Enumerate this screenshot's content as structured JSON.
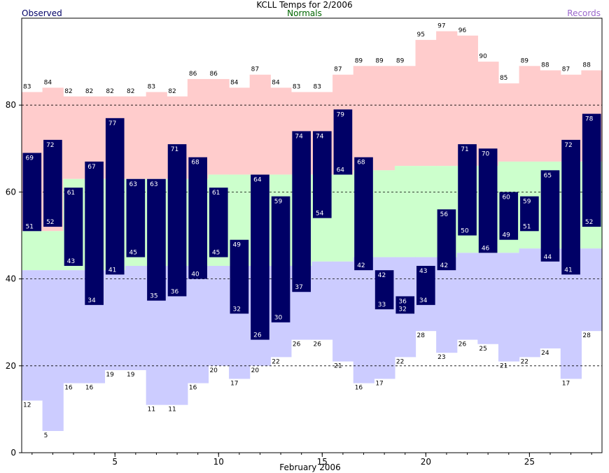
{
  "header": {
    "title": "KCLL Temps for 2/2006",
    "observed_label": "Observed",
    "normals_label": "Normals",
    "records_label": "Records"
  },
  "colors": {
    "observed_bar": "#000066",
    "record_high_band": "#ffcccc",
    "normal_band": "#ccffcc",
    "record_low_band": "#ccccff",
    "observed_text": "#000066",
    "normals_text": "#006600",
    "records_text": "#9966cc"
  },
  "chart_data": {
    "type": "bar",
    "title": "KCLL Temps for 2/2006",
    "xlabel": "February 2006",
    "ylabel": "",
    "days": [
      1,
      2,
      3,
      4,
      5,
      6,
      7,
      8,
      9,
      10,
      11,
      12,
      13,
      14,
      15,
      16,
      17,
      18,
      19,
      20,
      21,
      22,
      23,
      24,
      25,
      26,
      27,
      28
    ],
    "xlim": [
      0.5,
      28.5
    ],
    "xticks": [
      5,
      10,
      15,
      20,
      25
    ],
    "ylim": [
      0,
      100
    ],
    "yticks": [
      0,
      20,
      40,
      60,
      80
    ],
    "gridlines_y": [
      20,
      40,
      60,
      80
    ],
    "observed_high": [
      69,
      72,
      61,
      67,
      77,
      63,
      63,
      71,
      68,
      61,
      49,
      64,
      59,
      74,
      74,
      79,
      68,
      42,
      36,
      43,
      56,
      71,
      70,
      60,
      59,
      65,
      72,
      78
    ],
    "observed_low": [
      51,
      52,
      43,
      34,
      41,
      45,
      35,
      36,
      40,
      45,
      32,
      26,
      30,
      37,
      54,
      64,
      42,
      33,
      32,
      34,
      42,
      50,
      46,
      49,
      51,
      44,
      41,
      52
    ],
    "record_high": [
      83,
      84,
      82,
      82,
      82,
      82,
      83,
      82,
      86,
      86,
      84,
      87,
      84,
      83,
      83,
      87,
      89,
      89,
      89,
      95,
      97,
      96,
      90,
      85,
      89,
      88,
      87,
      88
    ],
    "record_low": [
      12,
      5,
      16,
      16,
      19,
      19,
      11,
      11,
      16,
      20,
      17,
      20,
      22,
      26,
      26,
      21,
      16,
      17,
      22,
      28,
      23,
      26,
      25,
      21,
      22,
      24,
      17,
      28
    ],
    "normal_high": [
      51,
      51,
      63,
      63,
      63,
      63,
      63,
      63,
      63,
      64,
      64,
      64,
      64,
      64,
      64,
      64,
      65,
      65,
      66,
      66,
      66,
      66,
      66,
      67,
      67,
      67,
      67,
      67
    ],
    "normal_low": [
      42,
      42,
      42,
      42,
      42,
      43,
      43,
      43,
      43,
      43,
      43,
      43,
      43,
      43,
      44,
      44,
      45,
      45,
      45,
      45,
      45,
      46,
      46,
      46,
      47,
      47,
      47,
      47
    ]
  }
}
